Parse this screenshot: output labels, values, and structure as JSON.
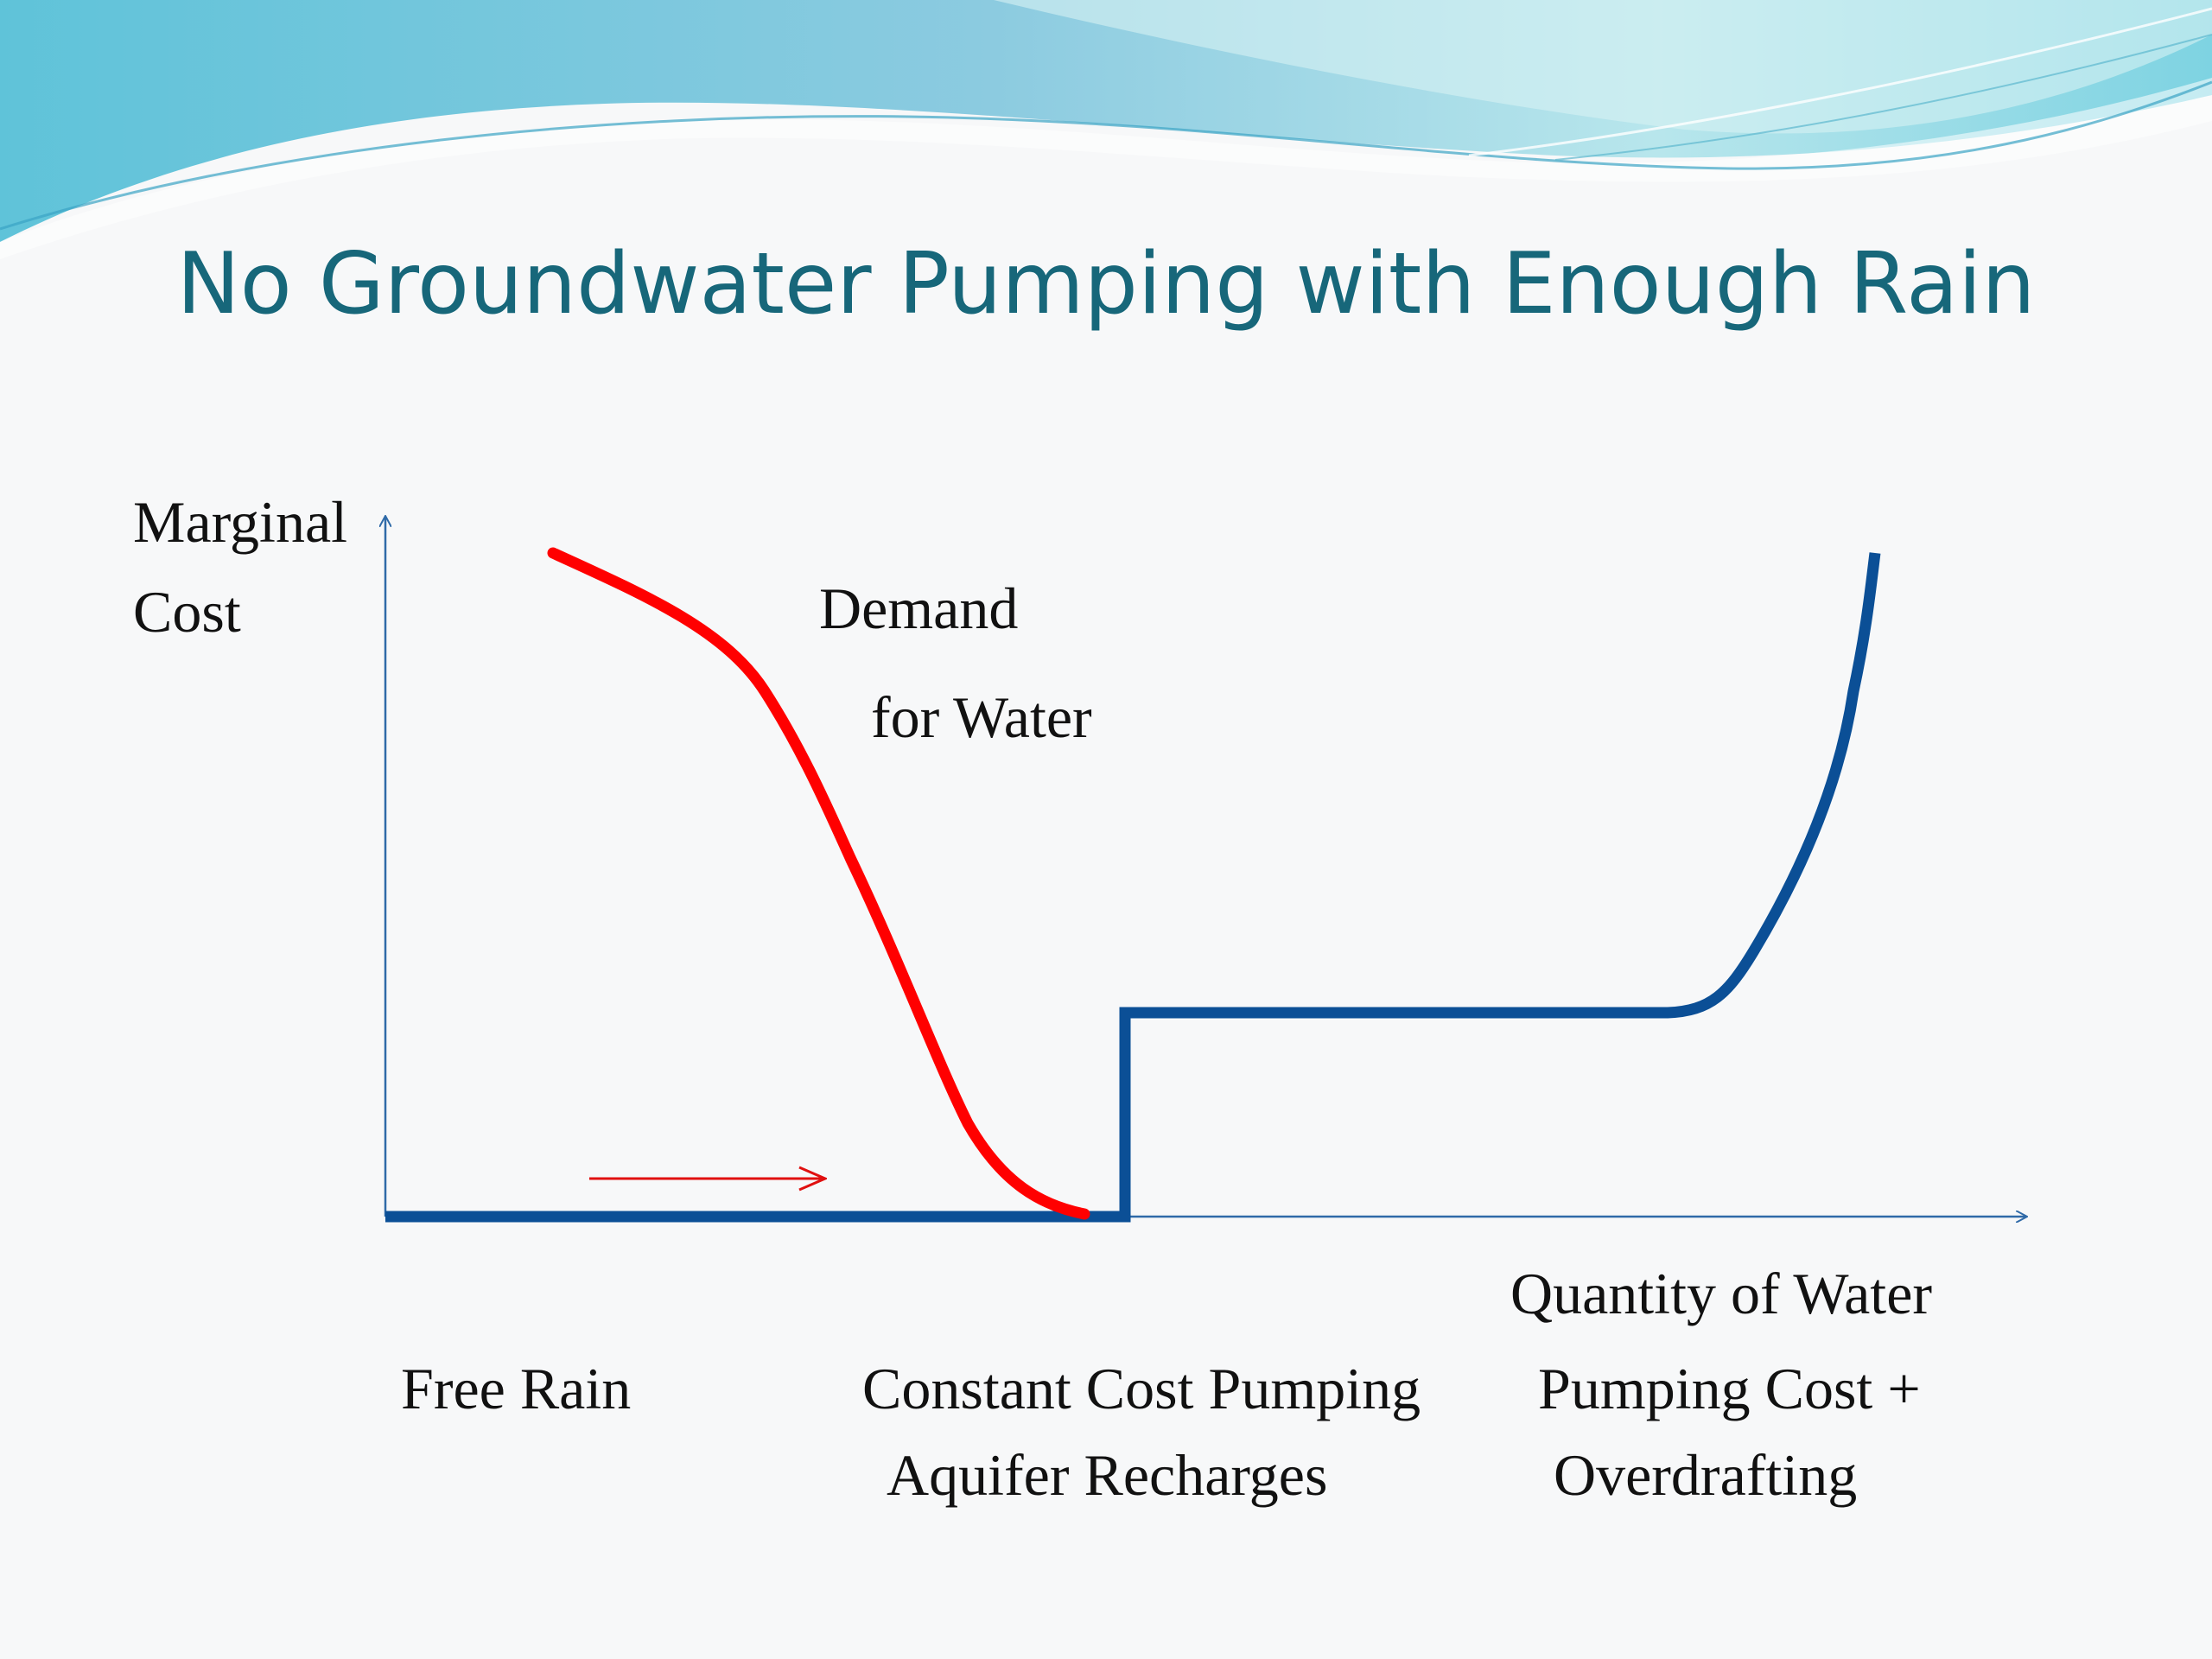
{
  "slide": {
    "title": "No Groundwater Pumping with Enough Rain"
  },
  "axes": {
    "y_label_line1": "Marginal",
    "y_label_line2": "Cost",
    "x_label": "Quantity of Water"
  },
  "curves": {
    "demand_label_line1": "Demand",
    "demand_label_line2": "for Water"
  },
  "regions": {
    "free_rain": "Free Rain",
    "constant_line1": "Constant Cost Pumping",
    "constant_line2": "Aquifer Recharges",
    "overdraft_line1": "Pumping Cost +",
    "overdraft_line2": "Overdrafting"
  },
  "colors": {
    "title": "#17677a",
    "supply_curve": "#0b4f96",
    "demand_curve": "#ff0000",
    "axes": "#2f6aa8",
    "arrow": "#e01010"
  }
}
